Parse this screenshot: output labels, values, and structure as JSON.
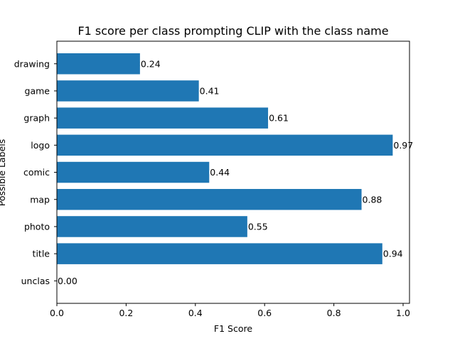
{
  "chart_data": {
    "type": "bar",
    "orientation": "horizontal",
    "title": "F1 score per class prompting CLIP with the class name",
    "xlabel": "F1 Score",
    "ylabel": "Possible Labels",
    "categories": [
      "drawing",
      "game",
      "graph",
      "logo",
      "comic",
      "map",
      "photo",
      "title",
      "unclas"
    ],
    "values": [
      0.24,
      0.41,
      0.61,
      0.97,
      0.44,
      0.88,
      0.55,
      0.94,
      0.0
    ],
    "data_labels": [
      "0.24",
      "0.41",
      "0.61",
      "0.97",
      "0.44",
      "0.88",
      "0.55",
      "0.94",
      "0.00"
    ],
    "xlim": [
      0,
      1.02
    ],
    "xticks": [
      0.0,
      0.2,
      0.4,
      0.6,
      0.8,
      1.0
    ],
    "xtick_labels": [
      "0.0",
      "0.2",
      "0.4",
      "0.6",
      "0.8",
      "1.0"
    ],
    "bar_color": "#1f77b4",
    "grid": false,
    "legend": "none"
  }
}
